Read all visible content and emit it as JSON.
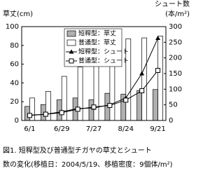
{
  "chart_data": {
    "type": "bar-line",
    "caption": [
      "図1. 短稈型及び普通型チガヤの草丈とシュート",
      "数の変化(移植日：2004/5/19、移植密度：9個体/m²)"
    ],
    "y_label": "草丈(cm)",
    "y2_label": [
      "シュート数",
      "(本/m²)"
    ],
    "categories": [
      "6/1",
      null,
      "6/29",
      null,
      "7/27",
      null,
      "8/24",
      null,
      "9/21"
    ],
    "ylim": [
      0,
      100
    ],
    "yticks": [
      0,
      20,
      40,
      60,
      80,
      100
    ],
    "y2lim": [
      0,
      300
    ],
    "y2ticks": [
      0,
      50,
      100,
      150,
      200,
      250,
      300
    ],
    "series": [
      {
        "name": "短稈型：草丈",
        "kind": "bar",
        "color": "#b0b0b0",
        "values": [
          15,
          17,
          22,
          24,
          22,
          29,
          28,
          32,
          33
        ]
      },
      {
        "name": "普通型：草丈",
        "kind": "bar",
        "color": "#ffffff",
        "values": [
          24,
          31,
          47,
          57,
          71,
          80,
          87,
          88,
          90
        ]
      },
      {
        "name": "短稈型：シュート",
        "kind": "line",
        "marker": "triangle",
        "axis": "y2",
        "color": "#000000",
        "values": [
          17,
          20,
          28,
          38,
          40,
          50,
          72,
          150,
          263
        ]
      },
      {
        "name": "普通型：シュート",
        "kind": "line",
        "marker": "square",
        "axis": "y2",
        "color": "#000000",
        "values": [
          16,
          20,
          25,
          36,
          43,
          48,
          65,
          95,
          160
        ]
      }
    ]
  }
}
